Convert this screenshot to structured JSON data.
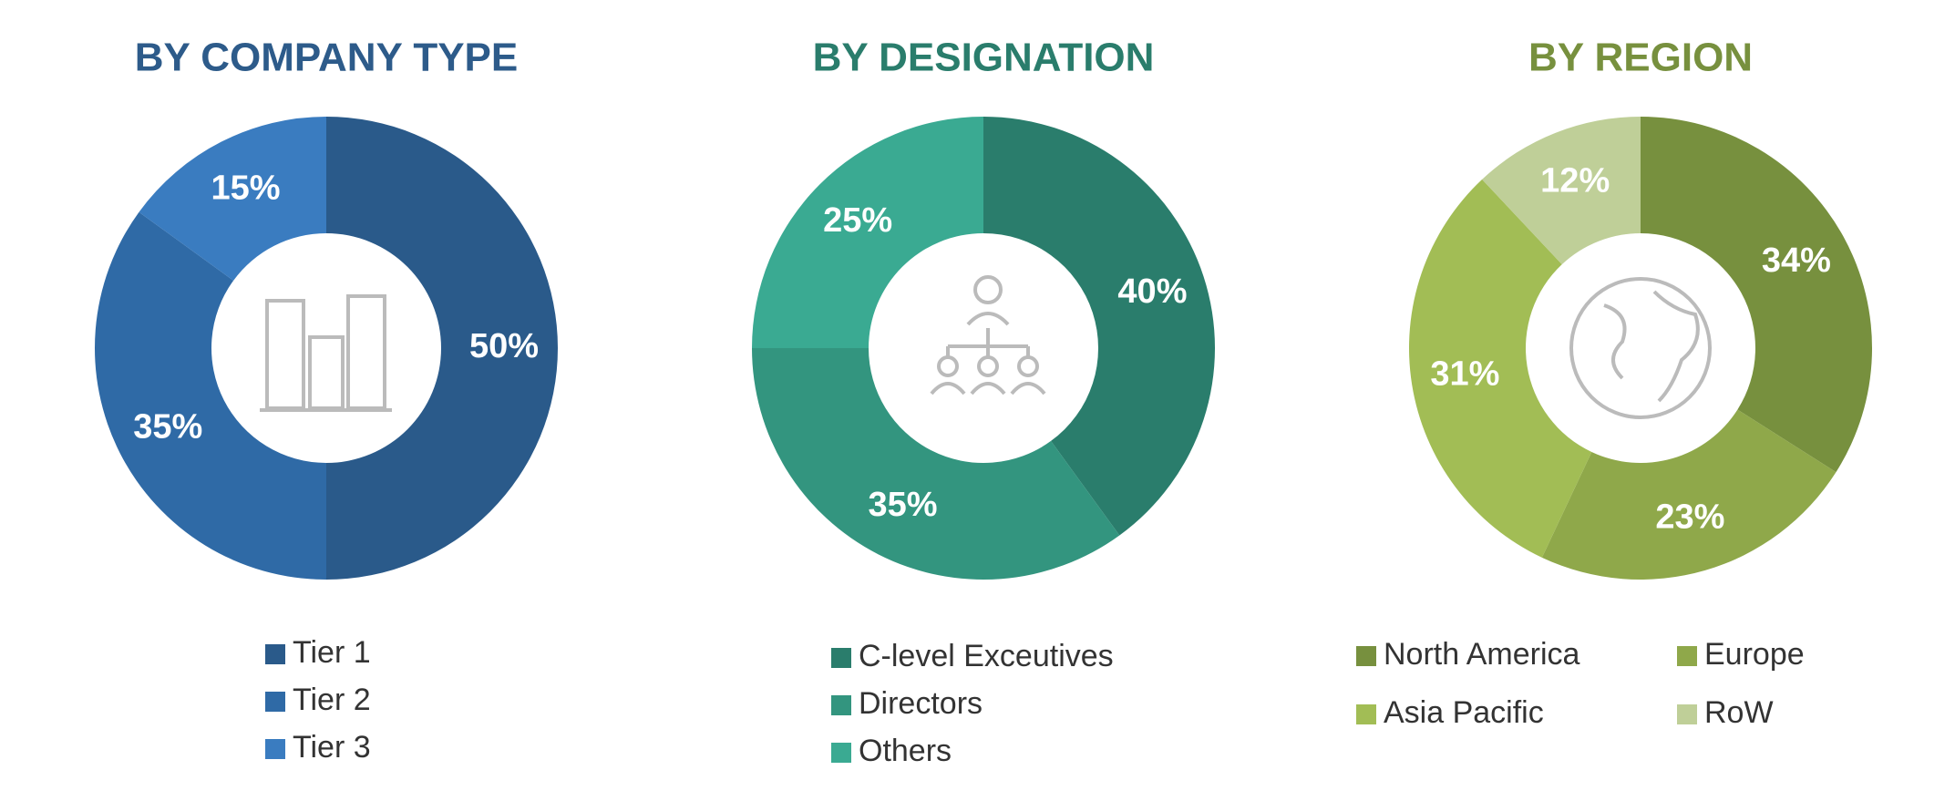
{
  "chart_data": [
    {
      "type": "pie",
      "title": "BY COMPANY TYPE",
      "categories": [
        "Tier 1",
        "Tier 2",
        "Tier 3"
      ],
      "values": [
        50,
        35,
        15
      ],
      "value_labels": [
        "50%",
        "35%",
        "15%"
      ],
      "colors": [
        "#2a5a8a",
        "#2f6aa6",
        "#3a7cc0"
      ],
      "title_color": "#2d5b8a"
    },
    {
      "type": "pie",
      "title": "BY DESIGNATION",
      "categories": [
        "C-level Exceutives",
        "Directors",
        "Others"
      ],
      "values": [
        40,
        35,
        25
      ],
      "value_labels": [
        "40%",
        "35%",
        "25%"
      ],
      "colors": [
        "#2a7d6c",
        "#33957f",
        "#3aaa92"
      ],
      "title_color": "#2a7d6c"
    },
    {
      "type": "pie",
      "title": "BY REGION",
      "categories": [
        "North America",
        "Europe",
        "Asia Pacific",
        "RoW"
      ],
      "values": [
        34,
        23,
        31,
        12
      ],
      "value_labels": [
        "34%",
        "23%",
        "31%",
        "12%"
      ],
      "colors": [
        "#77903e",
        "#8fa84a",
        "#a2bd55",
        "#bfcf98"
      ],
      "title_color": "#77903e"
    }
  ]
}
